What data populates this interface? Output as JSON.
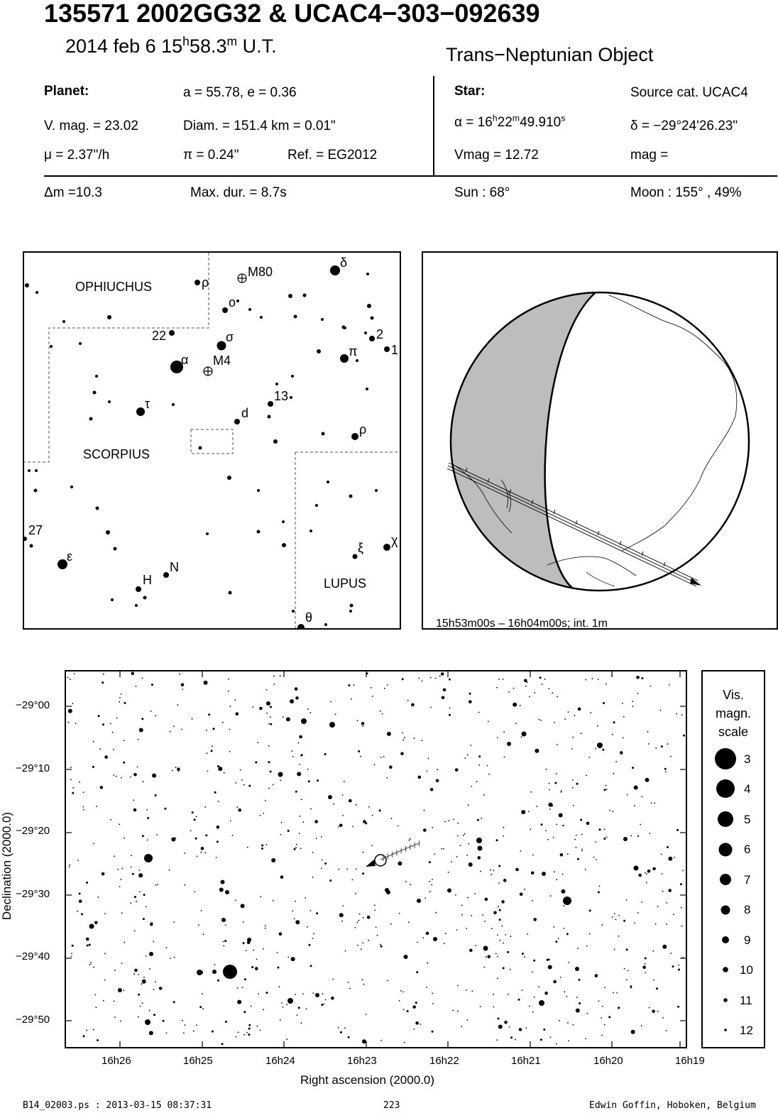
{
  "header": {
    "title": "135571 2002GG32  &  UCAC4−303−092639",
    "date_prefix": "2014 feb  6  15",
    "date_h": "h",
    "date_mid": "58.3",
    "date_m": "m",
    "date_suffix": " U.T.",
    "object_type": "Trans−Neptunian Object"
  },
  "planet": {
    "label": "Planet:",
    "orbit": "a = 55.78, e = 0.36",
    "vmag": "V. mag. = 23.02",
    "diam": "Diam. = 151.4 km = 0.01\"",
    "mu": "μ =  2.37\"/h",
    "pi": "π =  0.24\"",
    "ref": "Ref. = EG2012"
  },
  "star": {
    "label": "Star:",
    "source": "Source cat.  UCAC4",
    "ra_prefix": "α = 16",
    "ra_h": "h",
    "ra_mid": "22",
    "ra_m": "m",
    "ra_sec": "49.910",
    "ra_s": "s",
    "dec": "δ = −29°24'26.23\"",
    "vmag": "Vmag = 12.72",
    "mag": " mag ="
  },
  "summary": {
    "dm": "Δm =10.3",
    "maxdur": "Max. dur. = 8.7s",
    "sun": "Sun :  68°",
    "moon": "Moon : 155° , 49%"
  },
  "constellation_map": {
    "labels": {
      "ophiuchus": "OPHIUCHUS",
      "scorpius": "SCORPIUS",
      "lupus": "LUPUS",
      "m80": "M80",
      "m4": "M4",
      "n22": "22",
      "n13": "13",
      "n27": "27",
      "n2": "2",
      "n1": "1",
      "d": "d",
      "H": "H",
      "N": "N",
      "alpha": "α",
      "sigma": "σ",
      "tau": "τ",
      "delta": "δ",
      "rho1": "ρ",
      "omicron": "o",
      "pi": "π",
      "rho2": "ρ",
      "epsilon": "ε",
      "xi": "ξ",
      "chi": "χ",
      "theta": "θ"
    }
  },
  "globe": {
    "caption": "15h53m00s – 16h04m00s; int.  1m"
  },
  "star_chart": {
    "ylabel": "Declination (2000.0)",
    "xlabel": "Right ascension (2000.0)",
    "y_ticks": [
      "−29°00",
      "−29°10",
      "−29°20",
      "−29°30",
      "−29°40",
      "−29°50"
    ],
    "x_ticks": [
      "16h26",
      "16h25",
      "16h24",
      "16h23",
      "16h22",
      "16h21",
      "16h20",
      "16h19"
    ]
  },
  "mag_scale": {
    "title_lines": [
      "Vis.",
      "magn.",
      "scale"
    ],
    "mags": [
      "3",
      "4",
      "5",
      "6",
      "7",
      "8",
      "9",
      "10",
      "11",
      "12"
    ]
  },
  "footer": {
    "left": "B14_02003.ps : 2013-03-15 08:37:31",
    "center": "223",
    "right": "Edwin Goffin, Hoboken, Belgium"
  }
}
